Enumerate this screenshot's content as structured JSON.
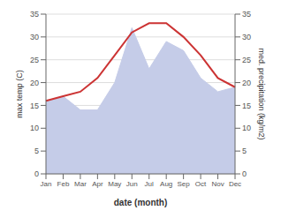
{
  "chart_data": {
    "type": "line",
    "categories": [
      "Jan",
      "Feb",
      "Mar",
      "Apr",
      "May",
      "Jun",
      "Jul",
      "Aug",
      "Sep",
      "Oct",
      "Nov",
      "Dec"
    ],
    "series": [
      {
        "type": "area",
        "axis": "y2",
        "color": "#c5cce8",
        "values": [
          16,
          17,
          14,
          14,
          20,
          32,
          23,
          29,
          27,
          21,
          18,
          19
        ]
      },
      {
        "type": "line",
        "axis": "y",
        "color": "#cc3333",
        "values": [
          16,
          17,
          18,
          21,
          26,
          31,
          33,
          33,
          30,
          26,
          21,
          19
        ]
      }
    ],
    "xlabel": "date (month)",
    "ylabel": "max temp (C)",
    "y2label": "med. precipitation (kg/m2)",
    "ylim": [
      0,
      35
    ],
    "yticks": [
      0,
      5,
      10,
      15,
      20,
      25,
      30,
      35
    ],
    "y2lim": [
      0,
      35
    ],
    "y2ticks": [
      0,
      5,
      10,
      15,
      20,
      25,
      30,
      35
    ],
    "grid": true
  }
}
